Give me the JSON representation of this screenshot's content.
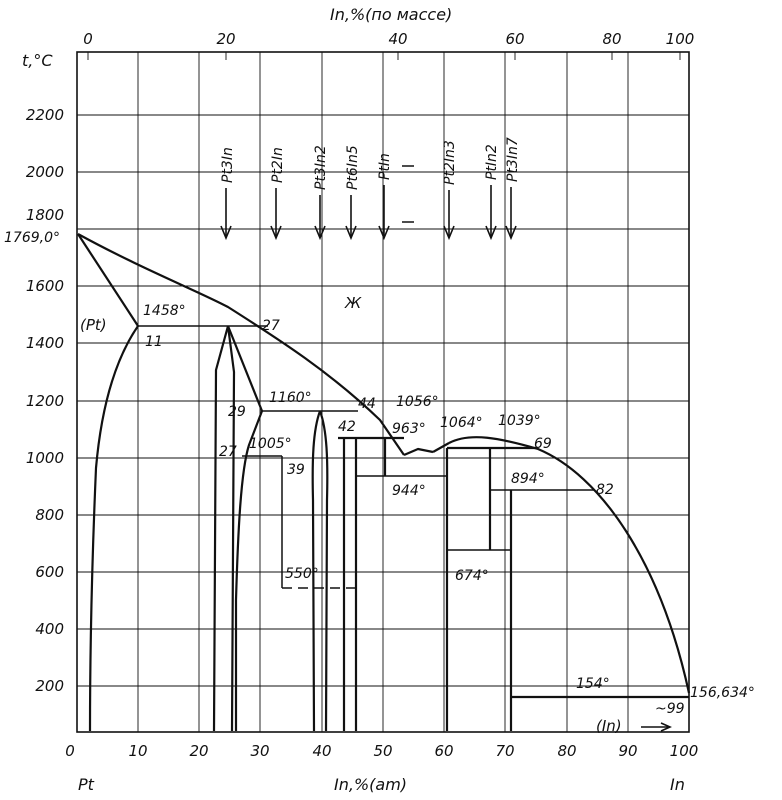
{
  "figure": {
    "top_axis_title": "In,%(по массе)",
    "bottom_axis_title": "In,%(am)",
    "y_axis_title": "t,°C",
    "left_element": "Pt",
    "right_element": "In",
    "top_ticks": [
      "0",
      "20",
      "40",
      "60",
      "80",
      "100"
    ],
    "bottom_ticks": [
      "0",
      "10",
      "20",
      "30",
      "40",
      "50",
      "60",
      "70",
      "80",
      "90",
      "100"
    ],
    "y_ticks": [
      "200",
      "400",
      "600",
      "800",
      "1000",
      "1200",
      "1400",
      "1600",
      "1800",
      "2000",
      "2200"
    ],
    "compounds": [
      "Pt3In",
      "Pt2In",
      "Pt3In2",
      "Pt6In5",
      "PtIn",
      "Pt2In3",
      "PtIn2",
      "Pt3In7"
    ],
    "phase_labels": {
      "liquid": "Ж",
      "pt_solid": "(Pt)",
      "in_solid": "(In)"
    },
    "annotations": {
      "t_1769": "1769,0°",
      "t_1458": "1458°",
      "c_27_top": "27",
      "c_11": "11",
      "t_1160": "1160°",
      "c_44": "44",
      "t_1056": "1056°",
      "c_29": "29",
      "c_42": "42",
      "t_963": "963°",
      "t_1064": "1064°",
      "t_1039": "1039°",
      "c_69": "69",
      "c_27_low": "27",
      "t_1005": "1005°",
      "c_39": "39",
      "t_944": "944°",
      "t_894": "894°",
      "c_82": "82",
      "t_550": "550°",
      "t_674": "674°",
      "t_154": "154°",
      "t_156": "156,634°",
      "c_99": "~99"
    }
  }
}
